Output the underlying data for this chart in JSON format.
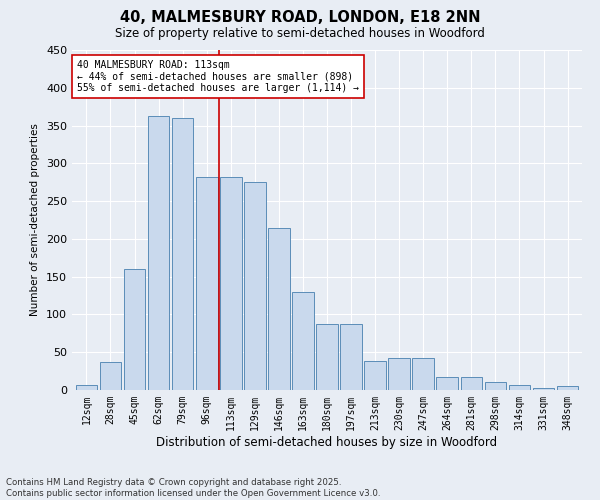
{
  "title_line1": "40, MALMESBURY ROAD, LONDON, E18 2NN",
  "title_line2": "Size of property relative to semi-detached houses in Woodford",
  "xlabel": "Distribution of semi-detached houses by size in Woodford",
  "ylabel": "Number of semi-detached properties",
  "footnote_line1": "Contains HM Land Registry data © Crown copyright and database right 2025.",
  "footnote_line2": "Contains public sector information licensed under the Open Government Licence v3.0.",
  "annotation_line1": "40 MALMESBURY ROAD: 113sqm",
  "annotation_line2": "← 44% of semi-detached houses are smaller (898)",
  "annotation_line3": "55% of semi-detached houses are larger (1,114) →",
  "vline_color": "#cc0000",
  "bar_color": "#c9d9ed",
  "bar_edge_color": "#5b8db8",
  "background_color": "#e8edf4",
  "categories": [
    "12sqm",
    "28sqm",
    "45sqm",
    "62sqm",
    "79sqm",
    "96sqm",
    "113sqm",
    "129sqm",
    "146sqm",
    "163sqm",
    "180sqm",
    "197sqm",
    "213sqm",
    "230sqm",
    "247sqm",
    "264sqm",
    "281sqm",
    "298sqm",
    "314sqm",
    "331sqm",
    "348sqm"
  ],
  "values": [
    7,
    37,
    160,
    362,
    360,
    282,
    282,
    275,
    215,
    130,
    87,
    87,
    38,
    42,
    42,
    17,
    17,
    10,
    6,
    3,
    5
  ],
  "vline_index": 6,
  "ylim": [
    0,
    450
  ],
  "yticks": [
    0,
    50,
    100,
    150,
    200,
    250,
    300,
    350,
    400,
    450
  ],
  "fig_width": 6.0,
  "fig_height": 5.0,
  "dpi": 100
}
